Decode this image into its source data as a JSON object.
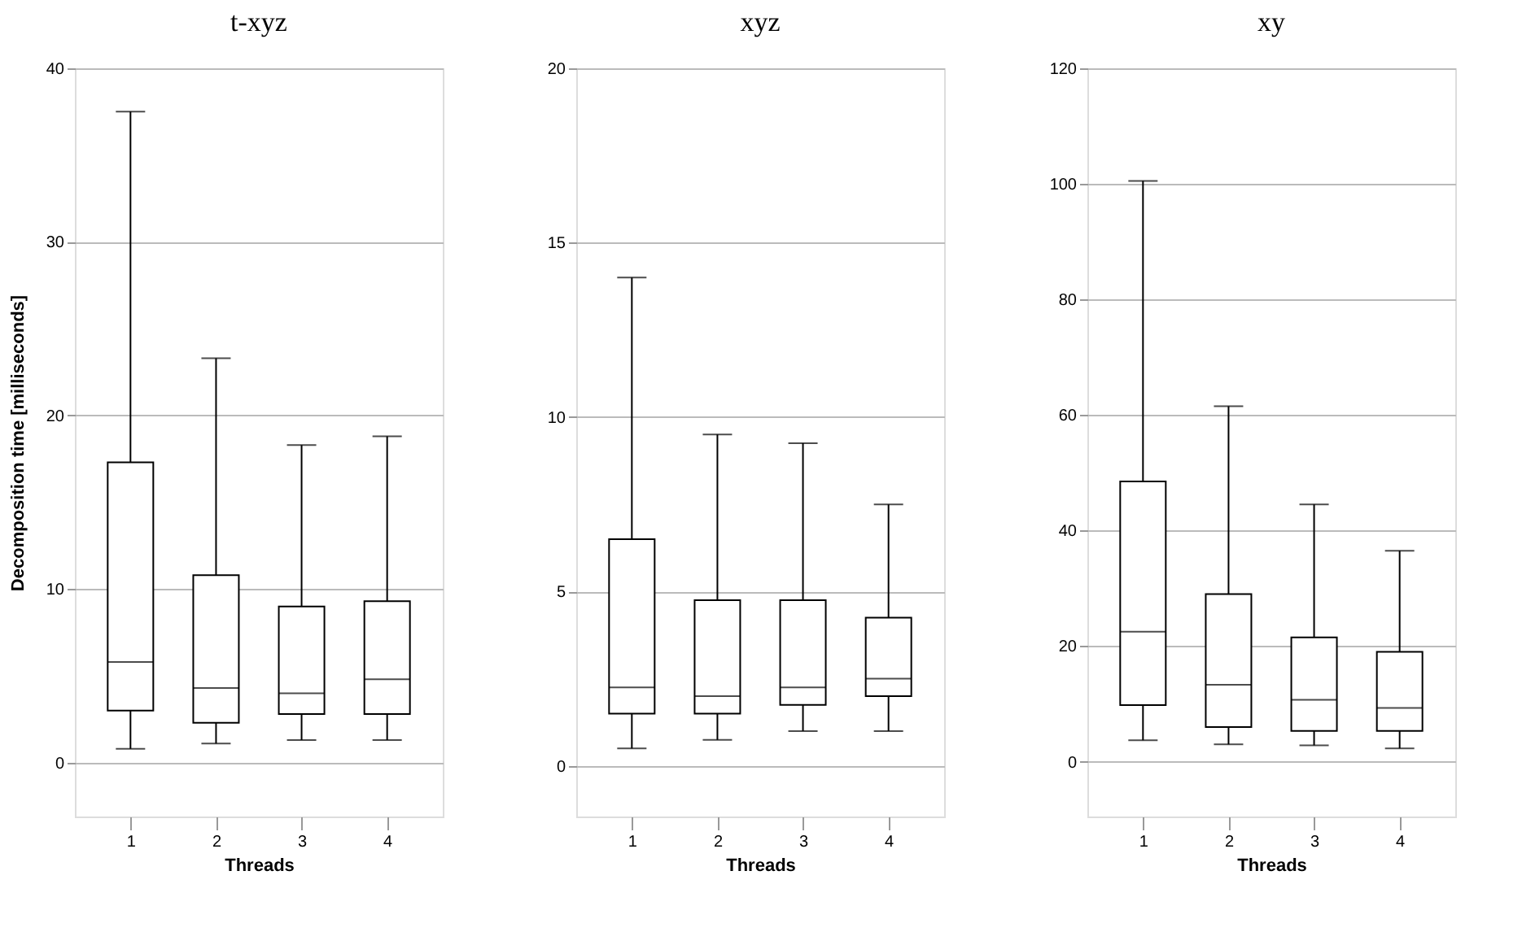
{
  "chart_data": [
    {
      "type": "box",
      "title": "t-xyz",
      "xlabel": "Threads",
      "ylabel": "Decomposition time [milliseconds]",
      "categories": [
        "1",
        "2",
        "3",
        "4"
      ],
      "ylim": [
        -3.1,
        40
      ],
      "yticks": [
        0,
        10,
        20,
        30,
        40
      ],
      "grid": "y",
      "boxes": [
        {
          "low": 0.8,
          "q1": 3.0,
          "median": 5.8,
          "q3": 17.3,
          "high": 37.5
        },
        {
          "low": 1.1,
          "q1": 2.3,
          "median": 4.3,
          "q3": 10.8,
          "high": 23.3
        },
        {
          "low": 1.3,
          "q1": 2.8,
          "median": 4.0,
          "q3": 9.0,
          "high": 18.3
        },
        {
          "low": 1.3,
          "q1": 2.8,
          "median": 4.8,
          "q3": 9.3,
          "high": 18.8
        }
      ]
    },
    {
      "type": "box",
      "title": "xyz",
      "xlabel": "Threads",
      "categories": [
        "1",
        "2",
        "3",
        "4"
      ],
      "ylim": [
        -1.45,
        20
      ],
      "yticks": [
        0,
        5,
        10,
        15,
        20
      ],
      "grid": "y",
      "boxes": [
        {
          "low": 0.5,
          "q1": 1.5,
          "median": 2.25,
          "q3": 6.5,
          "high": 14.0
        },
        {
          "low": 0.75,
          "q1": 1.5,
          "median": 2.0,
          "q3": 4.75,
          "high": 9.5
        },
        {
          "low": 1.0,
          "q1": 1.75,
          "median": 2.25,
          "q3": 4.75,
          "high": 9.25
        },
        {
          "low": 1.0,
          "q1": 2.0,
          "median": 2.5,
          "q3": 4.25,
          "high": 7.5
        }
      ]
    },
    {
      "type": "box",
      "title": "xy",
      "xlabel": "Threads",
      "categories": [
        "1",
        "2",
        "3",
        "4"
      ],
      "ylim": [
        -9.5,
        120
      ],
      "yticks": [
        0,
        20,
        40,
        60,
        80,
        100,
        120
      ],
      "grid": "y",
      "boxes": [
        {
          "low": 3.7,
          "q1": 9.8,
          "median": 22.5,
          "q3": 48.5,
          "high": 100.5
        },
        {
          "low": 3.0,
          "q1": 6.0,
          "median": 13.3,
          "q3": 29.0,
          "high": 61.5
        },
        {
          "low": 2.8,
          "q1": 5.3,
          "median": 10.7,
          "q3": 21.5,
          "high": 44.5
        },
        {
          "low": 2.3,
          "q1": 5.3,
          "median": 9.3,
          "q3": 19.0,
          "high": 36.5
        }
      ]
    }
  ]
}
